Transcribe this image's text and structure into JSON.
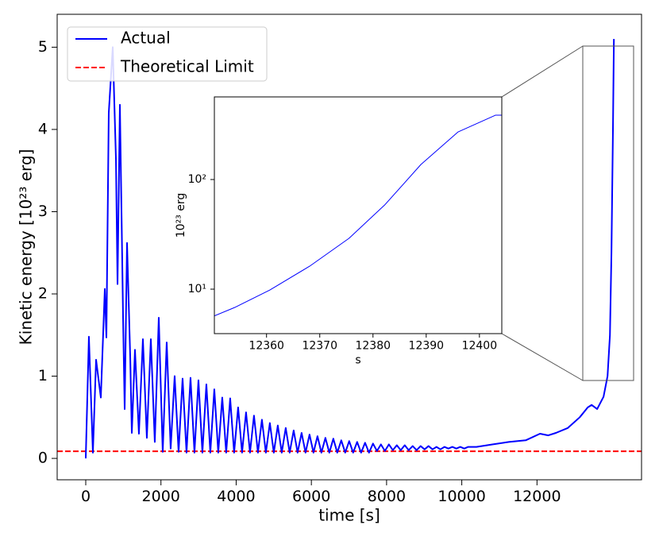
{
  "chart_data": [
    {
      "type": "line",
      "x_label": "time [s]",
      "y_label": "Kinetic energy [10²³ erg]",
      "xlim": [
        -760,
        14780
      ],
      "ylim": [
        -0.26,
        5.4
      ],
      "xticks": [
        0,
        2000,
        4000,
        6000,
        8000,
        10000,
        12000
      ],
      "yticks": [
        0,
        1,
        2,
        3,
        4,
        5
      ],
      "legend": "upper left",
      "series": [
        {
          "name": "Actual",
          "color": "#0000ff",
          "x": [
            0,
            84,
            190,
            275,
            401,
            507,
            549,
            612,
            718,
            803,
            845,
            908,
            993,
            1035,
            1098,
            1183,
            1225,
            1309,
            1414,
            1520,
            1625,
            1731,
            1836,
            1942,
            2047,
            2153,
            2258,
            2364,
            2469,
            2575,
            2680,
            2786,
            2891,
            2997,
            3102,
            3208,
            3313,
            3419,
            3524,
            3630,
            3735,
            3841,
            3946,
            4052,
            4157,
            4263,
            4368,
            4474,
            4579,
            4685,
            4790,
            4896,
            5001,
            5107,
            5212,
            5318,
            5423,
            5529,
            5634,
            5740,
            5845,
            5951,
            6056,
            6162,
            6267,
            6373,
            6478,
            6584,
            6689,
            6795,
            6900,
            7006,
            7111,
            7217,
            7322,
            7428,
            7533,
            7639,
            7744,
            7850,
            7955,
            8061,
            8166,
            8272,
            8377,
            8483,
            8588,
            8694,
            8799,
            8905,
            9010,
            9116,
            9221,
            9327,
            9432,
            9538,
            9643,
            9749,
            9854,
            9960,
            10065,
            10171,
            10390,
            10813,
            11250,
            11700,
            12080,
            12300,
            12503,
            12820,
            13137,
            13350,
            13454,
            13600,
            13770,
            13876,
            13940,
            13980,
            14020,
            14045
          ],
          "values": [
            0,
            1.48,
            0.07,
            1.2,
            0.74,
            2.06,
            1.47,
            4.2,
            5.0,
            3.64,
            2.12,
            4.3,
            1.71,
            0.6,
            2.62,
            1.23,
            0.31,
            1.32,
            0.3,
            1.45,
            0.25,
            1.45,
            0.2,
            1.71,
            0.08,
            1.41,
            0.12,
            1.0,
            0.08,
            0.97,
            0.07,
            0.98,
            0.07,
            0.95,
            0.07,
            0.9,
            0.07,
            0.84,
            0.07,
            0.74,
            0.07,
            0.73,
            0.07,
            0.62,
            0.07,
            0.56,
            0.07,
            0.52,
            0.07,
            0.47,
            0.07,
            0.43,
            0.07,
            0.4,
            0.07,
            0.37,
            0.07,
            0.34,
            0.07,
            0.31,
            0.07,
            0.29,
            0.07,
            0.27,
            0.07,
            0.25,
            0.07,
            0.24,
            0.07,
            0.22,
            0.07,
            0.21,
            0.07,
            0.2,
            0.07,
            0.19,
            0.07,
            0.18,
            0.09,
            0.17,
            0.09,
            0.17,
            0.1,
            0.16,
            0.1,
            0.16,
            0.1,
            0.15,
            0.1,
            0.15,
            0.11,
            0.15,
            0.11,
            0.14,
            0.11,
            0.14,
            0.12,
            0.14,
            0.12,
            0.14,
            0.12,
            0.14,
            0.14,
            0.17,
            0.2,
            0.22,
            0.3,
            0.28,
            0.31,
            0.37,
            0.5,
            0.62,
            0.65,
            0.6,
            0.75,
            1.0,
            1.5,
            2.5,
            4.0,
            5.1
          ]
        }
      ],
      "reference_line": {
        "name": "Theoretical Limit",
        "value": 0.087,
        "color": "#ff0000",
        "linestyle": "dashed"
      }
    },
    {
      "type": "line",
      "x_label": "s",
      "y_label": "10²³ erg",
      "xlim": [
        12350.2,
        12404.2
      ],
      "ylim": [
        3.93,
        567
      ],
      "log_y": true,
      "xticks": [
        12360,
        12370,
        12380,
        12390,
        12400
      ],
      "yticks": [
        {
          "value": 10,
          "label": "10¹"
        },
        {
          "value": 100,
          "label": "10²"
        }
      ],
      "series": [
        {
          "color": "#0000ff",
          "x": [
            12350.2,
            12354.0,
            12360.6,
            12368.1,
            12375.5,
            12382.2,
            12389.0,
            12396.0,
            12403.0,
            12404.2
          ],
          "values": [
            5.7,
            6.8,
            9.8,
            16.2,
            29.1,
            58.6,
            137,
            272,
            386,
            386
          ]
        }
      ]
    }
  ]
}
